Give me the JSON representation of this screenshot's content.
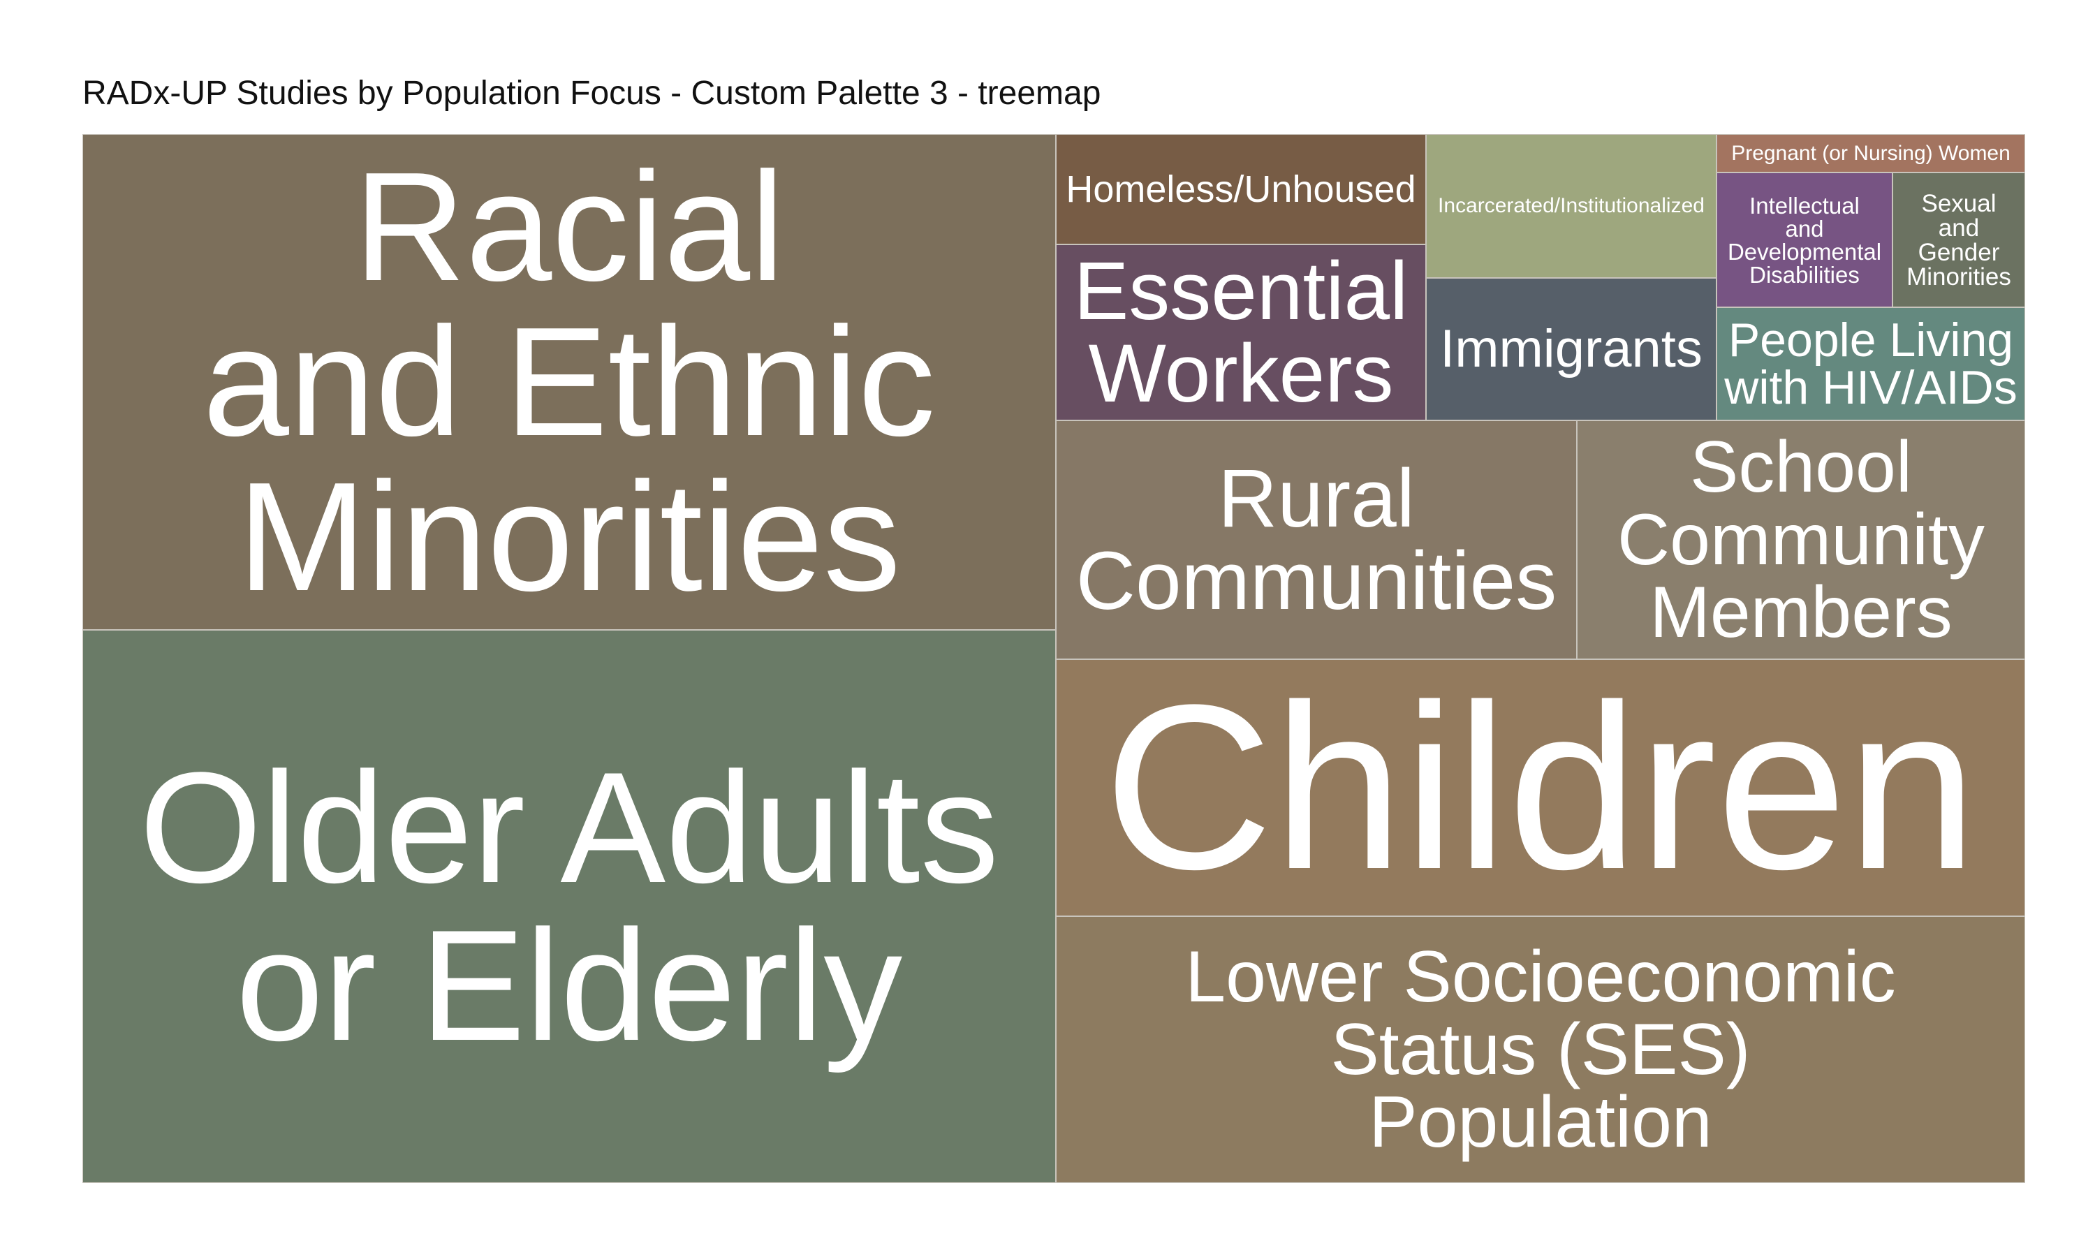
{
  "chart_data": {
    "type": "treemap",
    "title": "RADx-UP Studies by Population Focus - Custom Palette 3 - treemap",
    "items": [
      {
        "label": "Racial and Ethnic Minorities",
        "display": "Racial\nand Ethnic\nMinorities",
        "value": 100,
        "color": "#7c6f5b"
      },
      {
        "label": "Older Adults or Elderly",
        "display": "Older Adults\nor Elderly",
        "value": 109,
        "color": "#6a7b67"
      },
      {
        "label": "Homeless/Unhoused",
        "display": "Homeless/Unhoused",
        "value": 8,
        "color": "#775c45"
      },
      {
        "label": "Essential Workers",
        "display": "Essential\nWorkers",
        "value": 10,
        "color": "#674e61"
      },
      {
        "label": "Incarcerated/Institutionalized",
        "display": "Incarcerated/Institutionalized",
        "value": 7,
        "color": "#9ea77e"
      },
      {
        "label": "Immigrants",
        "display": "Immigrants",
        "value": 9,
        "color": "#565f69"
      },
      {
        "label": "Pregnant (or Nursing) Women",
        "display": "Pregnant (or Nursing) Women",
        "value": 2,
        "color": "#a37460"
      },
      {
        "label": "Intellectual and Developmental Disabilities",
        "display": "Intellectual\nand\nDevelopmental\nDisabilities",
        "value": 4,
        "color": "#775483"
      },
      {
        "label": "Sexual and Gender Minorities",
        "display": "Sexual\nand\nGender\nMinorities",
        "value": 3,
        "color": "#6b7261"
      },
      {
        "label": "People Living with HIV/AIDs",
        "display": "People Living\nwith HIV/AIDs",
        "value": 5,
        "color": "#64897f"
      },
      {
        "label": "Rural Communities",
        "display": "Rural\nCommunities",
        "value": 25,
        "color": "#867866"
      },
      {
        "label": "School Community Members",
        "display": "School\nCommunity\nMembers",
        "value": 23,
        "color": "#8a7f6d"
      },
      {
        "label": "Children",
        "display": "Children",
        "value": 49,
        "color": "#937a5d"
      },
      {
        "label": "Lower Socioeconomic Status (SES) Population",
        "display": "Lower Socioeconomic\nStatus (SES)\nPopulation",
        "value": 52,
        "color": "#8d7b60"
      }
    ]
  }
}
